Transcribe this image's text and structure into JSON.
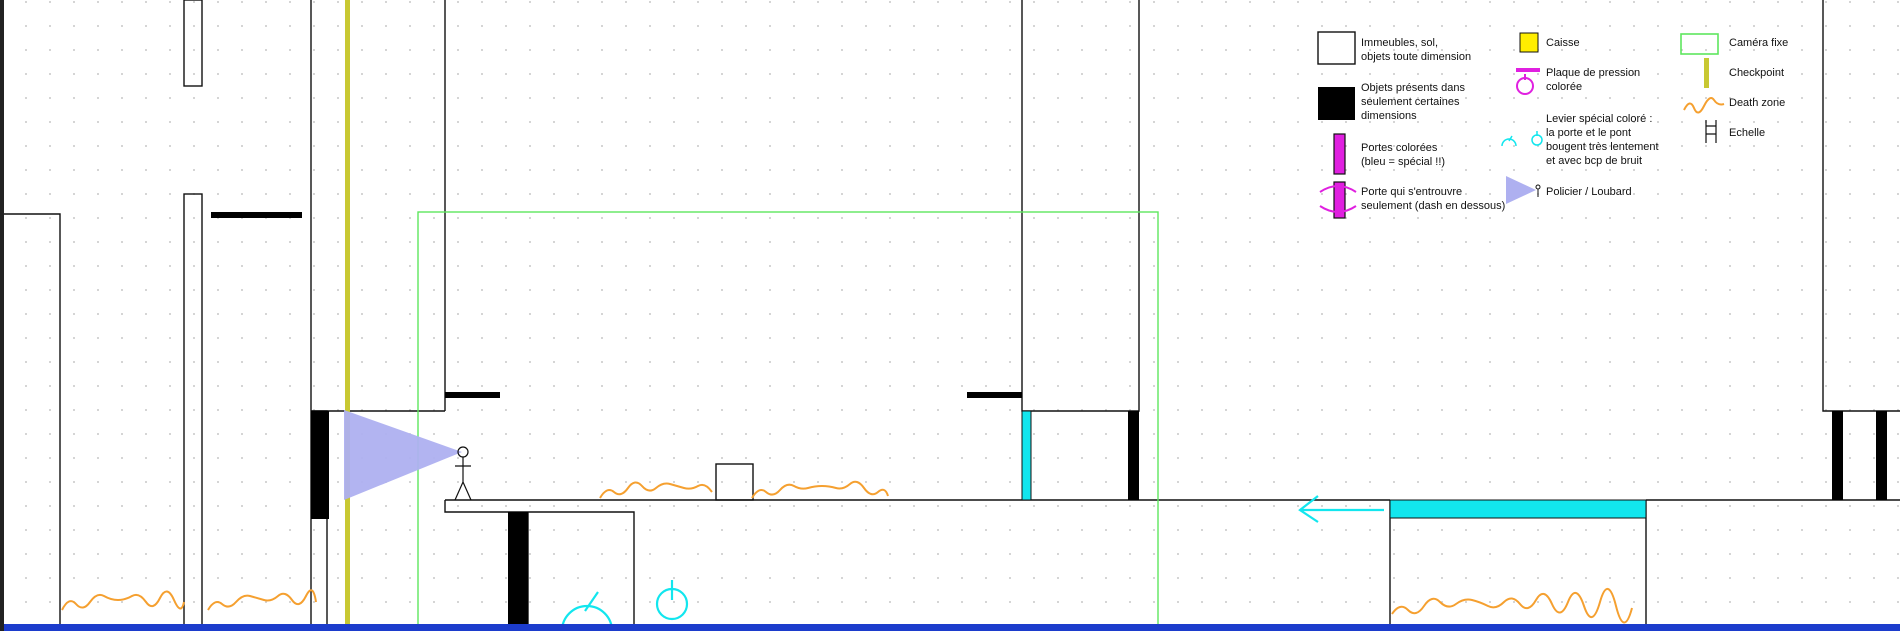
{
  "legend": {
    "buildings": "Immeubles, sol,\nobjets toute dimension",
    "dimension_objects": "Objets présents  dans\nseulement certaines\ndimensions",
    "colored_doors": "Portes colorées\n(bleu = spécial !!)",
    "half_open_door": "Porte qui s'entrouvre\nseulement (dash en dessous)",
    "crate": "Caisse",
    "pressure_plate": "Plaque de pression\ncolorée",
    "special_lever": "Levier spécial coloré :\nla porte et le pont\nbougent très lentement\net avec bcp de bruit",
    "guard": "Policier / Loubard",
    "fixed_camera": "Caméra fixe",
    "checkpoint": "Checkpoint",
    "death_zone": "Death zone",
    "ladder": "Echelle"
  },
  "colors": {
    "background": "#ffffff",
    "outline": "#111111",
    "dot_grid": "#c8c8c8",
    "camera_frame": "#5ee65e",
    "checkpoint": "#c8c832",
    "death_zone": "#f5a030",
    "special_cyan": "#12e6ee",
    "door_magenta": "#e020e0",
    "guard_cone": "#aeb0f0",
    "crate_yellow": "#ffee00",
    "floor_blue": "#1c3ccc",
    "left_border": "#222222"
  },
  "icons": {
    "direction_arrow": "arrow-left-icon",
    "lever": "lever-icon",
    "pressure_plate": "pressure-plate-icon",
    "guard": "guard-figure-icon"
  }
}
